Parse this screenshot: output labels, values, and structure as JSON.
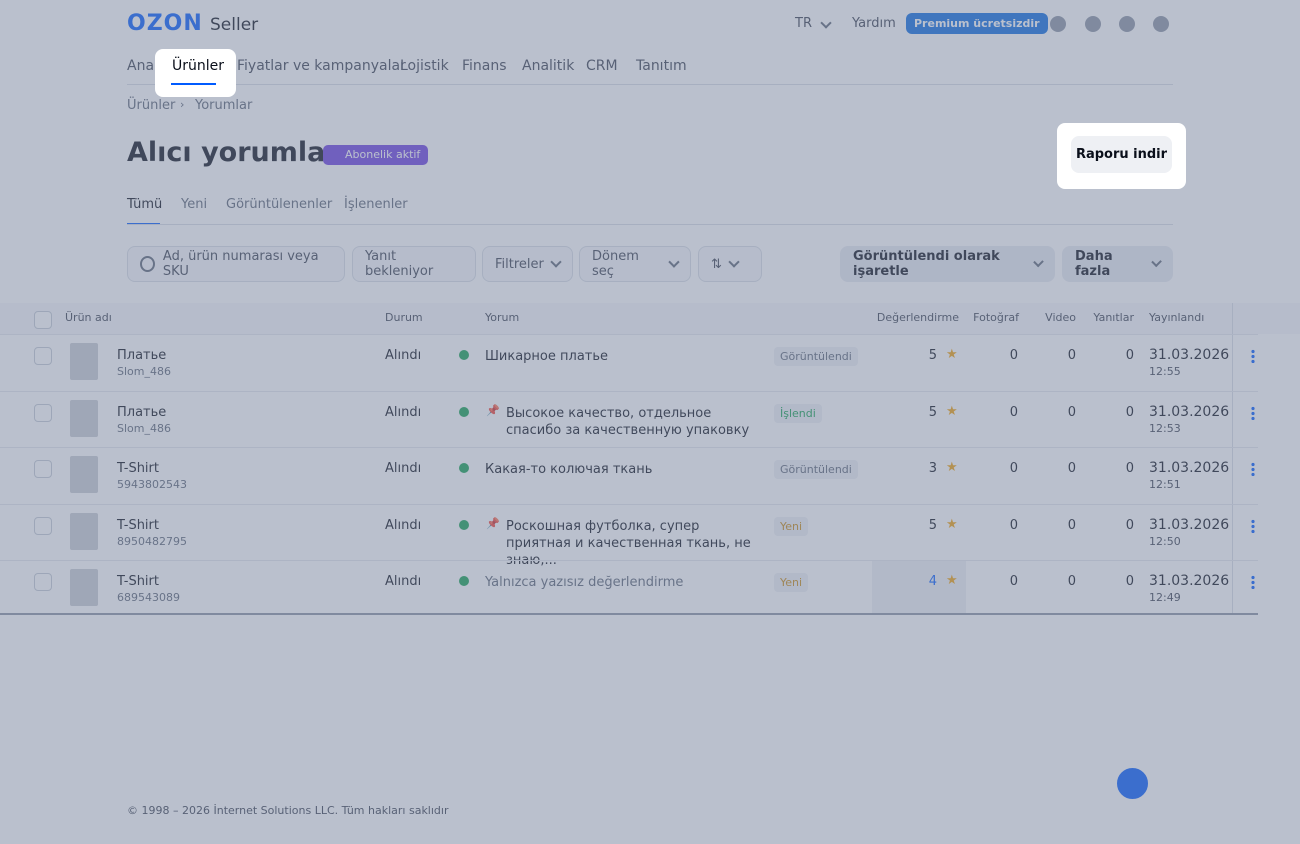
{
  "header": {
    "logo": "OZON",
    "logo_sub": "Seller",
    "lang": "TR",
    "help": "Yardım",
    "premium": "Premium ücretsizdir"
  },
  "nav": [
    "Ana",
    "Ürünler",
    "Fiyatlar ve kampanyalar",
    "Lojistik",
    "Finans",
    "Analitik",
    "CRM",
    "Tanıtım"
  ],
  "breadcrumb": [
    "Ürünler",
    "Yorumlar"
  ],
  "page": {
    "title": "Alıcı yorumları",
    "badge": "Abonelik aktif",
    "report_button": "Raporu indir"
  },
  "tabs": [
    "Tümü",
    "Yeni",
    "Görüntülenenler",
    "İşlenenler"
  ],
  "filters": {
    "search": "Ad, ürün numarası veya SKU",
    "awaiting": "Yanıt bekleniyor",
    "filters": "Filtreler",
    "period": "Dönem seç",
    "mark_viewed": "Görüntülendi olarak işaretle",
    "more": "Daha fazla"
  },
  "table": {
    "columns": [
      "Ürün adı",
      "Durum",
      "Yorum",
      "Değerlendirme",
      "Fotoğraf",
      "Video",
      "Yanıtlar",
      "Yayınlandı"
    ],
    "rows": [
      {
        "product": "Платье",
        "sku": "Slom_486",
        "status": "Alındı",
        "review": "Шикарное платье",
        "pinned": false,
        "tag": "Görüntülendi",
        "tag_color": "#5b6475",
        "rating": 5,
        "photos": 0,
        "videos": 0,
        "replies": 0,
        "date": "31.03.2026",
        "time": "12:55"
      },
      {
        "product": "Платье",
        "sku": "Slom_486",
        "status": "Alındı",
        "review": "Высокое качество, отдельное спасибо за качественную упаковку",
        "pinned": true,
        "tag": "İşlendi",
        "tag_color": "#12a150",
        "rating": 5,
        "photos": 0,
        "videos": 0,
        "replies": 0,
        "date": "31.03.2026",
        "time": "12:53"
      },
      {
        "product": "T-Shirt",
        "sku": "5943802543",
        "status": "Alındı",
        "review": "Какая-то колючая ткань",
        "pinned": false,
        "tag": "Görüntülendi",
        "tag_color": "#5b6475",
        "rating": 3,
        "photos": 0,
        "videos": 0,
        "replies": 0,
        "date": "31.03.2026",
        "time": "12:51"
      },
      {
        "product": "T-Shirt",
        "sku": "8950482795",
        "status": "Alındı",
        "review": "Роскошная футболка, супер приятная и качественная ткань, не знаю,...",
        "pinned": true,
        "tag": "Yeni",
        "tag_color": "#c98a12",
        "rating": 5,
        "photos": 0,
        "videos": 0,
        "replies": 0,
        "date": "31.03.2026",
        "time": "12:50"
      },
      {
        "product": "T-Shirt",
        "sku": "689543089",
        "status": "Alındı",
        "review": "Yalnızca yazısız değerlendirme",
        "pinned": false,
        "tag": "Yeni",
        "tag_color": "#c98a12",
        "rating": 4,
        "photos": 0,
        "videos": 0,
        "replies": 0,
        "date": "31.03.2026",
        "time": "12:49"
      }
    ]
  },
  "footer": "© 1998 – 2026 İnternet Solutions LLC. Tüm hakları saklıdır"
}
